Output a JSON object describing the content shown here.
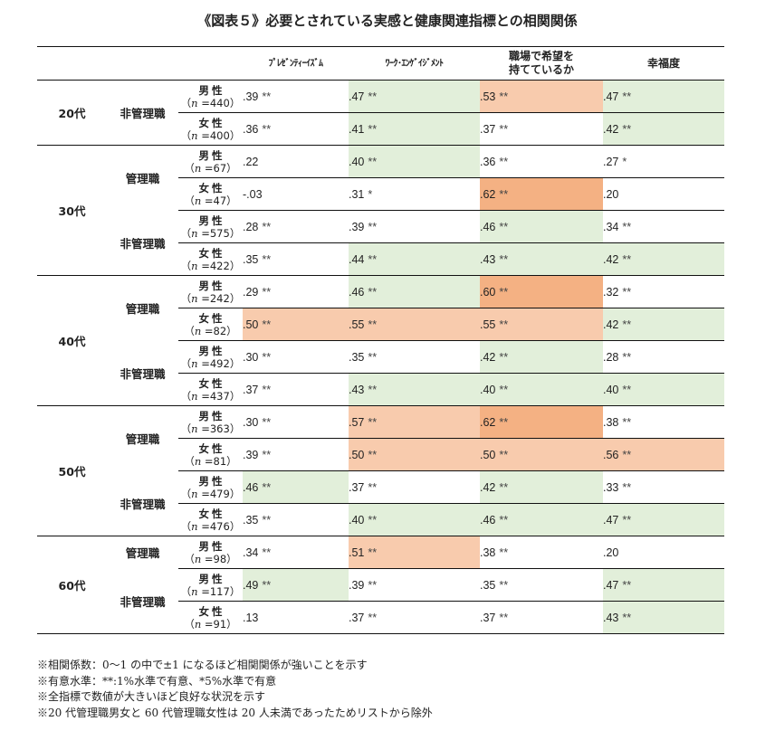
{
  "title": "《図表５》必要とされている実感と健康関連指標との相関関係",
  "columns": {
    "presenteeism": "ﾌﾟﾚｾﾞﾝﾃｨｰｲｽﾞﾑ",
    "work_engagement": "ﾜｰｸ･ｴﾝｹﾞｲｼﾞﾒﾝﾄ",
    "hope_line1": "職場で希望を",
    "hope_line2": "持てているか",
    "happiness": "幸福度"
  },
  "colors": {
    "green": "#e2efda",
    "peach": "#f8cbad",
    "orange": "#f4b183"
  },
  "rows": [
    {
      "age": "20代",
      "mgmt": "非管理職",
      "gender": "男性",
      "n": "=440",
      "p": ".39",
      "ps": "**",
      "w": ".47",
      "ws": "**",
      "h": ".53",
      "hs": "**",
      "f": ".47",
      "fs": "**"
    },
    {
      "age": "",
      "mgmt": "",
      "gender": "女性",
      "n": "=400",
      "p": ".36",
      "ps": "**",
      "w": ".41",
      "ws": "**",
      "h": ".37",
      "hs": "**",
      "f": ".42",
      "fs": "**"
    },
    {
      "age": "30代",
      "mgmt": "管理職",
      "gender": "男性",
      "n": "=67",
      "p": ".22",
      "ps": "",
      "w": ".40",
      "ws": "**",
      "h": ".36",
      "hs": "**",
      "f": ".27",
      "fs": "*"
    },
    {
      "age": "",
      "mgmt": "",
      "gender": "女性",
      "n": "=47",
      "p": "-.03",
      "ps": "",
      "w": ".31",
      "ws": "*",
      "h": ".62",
      "hs": "**",
      "f": ".20",
      "fs": ""
    },
    {
      "age": "",
      "mgmt": "非管理職",
      "gender": "男性",
      "n": "=575",
      "p": ".28",
      "ps": "**",
      "w": ".39",
      "ws": "**",
      "h": ".46",
      "hs": "**",
      "f": ".34",
      "fs": "**"
    },
    {
      "age": "",
      "mgmt": "",
      "gender": "女性",
      "n": "=422",
      "p": ".35",
      "ps": "**",
      "w": ".44",
      "ws": "**",
      "h": ".43",
      "hs": "**",
      "f": ".42",
      "fs": "**"
    },
    {
      "age": "40代",
      "mgmt": "管理職",
      "gender": "男性",
      "n": "=242",
      "p": ".29",
      "ps": "**",
      "w": ".46",
      "ws": "**",
      "h": ".60",
      "hs": "**",
      "f": ".32",
      "fs": "**"
    },
    {
      "age": "",
      "mgmt": "",
      "gender": "女性",
      "n": "=82",
      "p": ".50",
      "ps": "**",
      "w": ".55",
      "ws": "**",
      "h": ".55",
      "hs": "**",
      "f": ".42",
      "fs": "**"
    },
    {
      "age": "",
      "mgmt": "非管理職",
      "gender": "男性",
      "n": "=492",
      "p": ".30",
      "ps": "**",
      "w": ".35",
      "ws": "**",
      "h": ".42",
      "hs": "**",
      "f": ".28",
      "fs": "**"
    },
    {
      "age": "",
      "mgmt": "",
      "gender": "女性",
      "n": "=437",
      "p": ".37",
      "ps": "**",
      "w": ".43",
      "ws": "**",
      "h": ".40",
      "hs": "**",
      "f": ".40",
      "fs": "**"
    },
    {
      "age": "50代",
      "mgmt": "管理職",
      "gender": "男性",
      "n": "=363",
      "p": ".30",
      "ps": "**",
      "w": ".57",
      "ws": "**",
      "h": ".62",
      "hs": "**",
      "f": ".38",
      "fs": "**"
    },
    {
      "age": "",
      "mgmt": "",
      "gender": "女性",
      "n": "=81",
      "p": ".39",
      "ps": "**",
      "w": ".50",
      "ws": "**",
      "h": ".50",
      "hs": "**",
      "f": ".56",
      "fs": "**"
    },
    {
      "age": "",
      "mgmt": "非管理職",
      "gender": "男性",
      "n": "=479",
      "p": ".46",
      "ps": "**",
      "w": ".37",
      "ws": "**",
      "h": ".42",
      "hs": "**",
      "f": ".33",
      "fs": "**"
    },
    {
      "age": "",
      "mgmt": "",
      "gender": "女性",
      "n": "=476",
      "p": ".35",
      "ps": "**",
      "w": ".40",
      "ws": "**",
      "h": ".46",
      "hs": "**",
      "f": ".47",
      "fs": "**"
    },
    {
      "age": "60代",
      "mgmt": "管理職",
      "gender": "男性",
      "n": "=98",
      "p": ".34",
      "ps": "**",
      "w": ".51",
      "ws": "**",
      "h": ".38",
      "hs": "**",
      "f": ".20",
      "fs": ""
    },
    {
      "age": "",
      "mgmt": "非管理職",
      "gender": "男性",
      "n": "=117",
      "p": ".49",
      "ps": "**",
      "w": ".39",
      "ws": "**",
      "h": ".35",
      "hs": "**",
      "f": ".47",
      "fs": "**"
    },
    {
      "age": "",
      "mgmt": "",
      "gender": "女性",
      "n": "=91",
      "p": ".13",
      "ps": "",
      "w": ".37",
      "ws": "**",
      "h": ".37",
      "hs": "**",
      "f": ".43",
      "fs": "**"
    }
  ],
  "n_prefix": "n",
  "notes": [
    "※相関係数：0～1 の中で±1 になるほど相関関係が強いことを示す",
    "※有意水準：**:1%水準で有意、*5%水準で有意",
    "※全指標で数値が大きいほど良好な状況を示す",
    "※20 代管理職男女と 60 代管理職女性は 20 人未満であったためリストから除外"
  ]
}
